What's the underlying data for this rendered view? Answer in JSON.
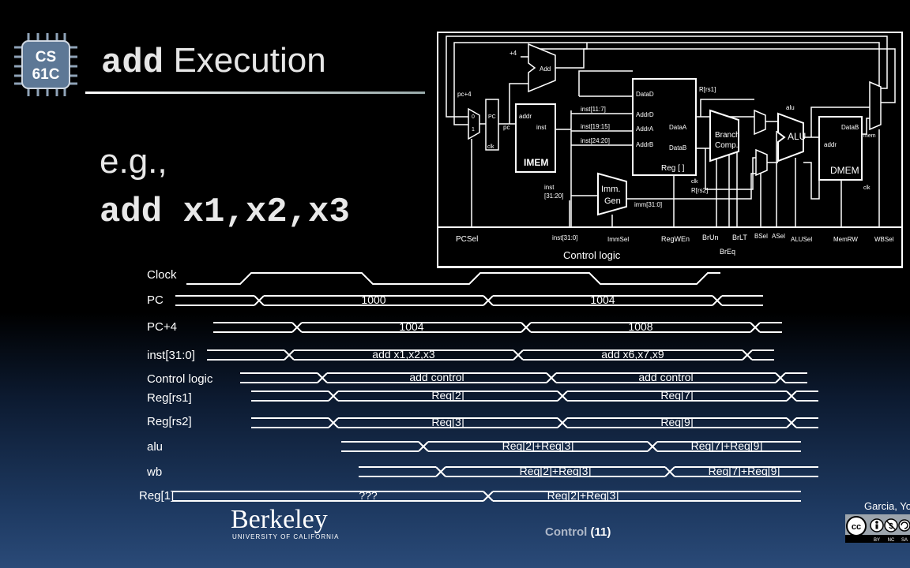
{
  "title": {
    "keyword": "add",
    "rest": " Execution"
  },
  "logo_text": [
    "CS",
    "61C"
  ],
  "example": {
    "eg": "e.g.,",
    "instruction": "add x1,x2,x3"
  },
  "datapath": {
    "plus4": "+4",
    "adder": "Add",
    "pc_plus4": "pc+4",
    "pc_box": "PC",
    "pc_out": "pc",
    "clk": "clk",
    "imem_addr": "addr",
    "imem_inst": "inst",
    "imem": "IMEM",
    "inst_11_7": "inst[11:7]",
    "inst_19_15": "inst[19:15]",
    "inst_24_20": "inst[24:20]",
    "inst_31_20a": "inst",
    "inst_31_20b": "[31:20]",
    "imm_gen_a": "Imm.",
    "imm_gen_b": "Gen",
    "imm_out": "imm[31:0]",
    "dataD": "DataD",
    "addrD": "AddrD",
    "addrA": "AddrA",
    "addrB": "AddrB",
    "dataA": "DataA",
    "dataB": "DataB",
    "reg": "Reg [ ]",
    "r_rs1": "R[rs1]",
    "r_rs2": "R[rs2]",
    "branch_a": "Branch",
    "branch_b": "Comp.",
    "alu": "ALU",
    "alu_wire": "alu",
    "dmem_addr": "addr",
    "dmem_datab": "DataB",
    "dmem": "DMEM",
    "mem": "mem",
    "control": "Control logic",
    "ctrl_signals": [
      "PCSel",
      "inst[31:0]",
      "ImmSel",
      "RegWEn",
      "BrUn",
      "BrLT",
      "BSel",
      "ASel",
      "ALUSel",
      "MemRW",
      "WBSel"
    ],
    "breq": "BrEq"
  },
  "timing": {
    "signals": [
      {
        "name": "Clock"
      },
      {
        "name": "PC",
        "values": [
          "1000",
          "1004"
        ]
      },
      {
        "name": "PC+4",
        "values": [
          "1004",
          "1008"
        ]
      },
      {
        "name": "inst[31:0]",
        "values": [
          "add x1,x2,x3",
          "add x6,x7,x9"
        ]
      },
      {
        "name": "Control logic",
        "values": [
          "add control",
          "add control"
        ]
      },
      {
        "name": "Reg[rs1]",
        "values": [
          "Reg[2]",
          "Reg[7]"
        ]
      },
      {
        "name": "Reg[rs2]",
        "values": [
          "Reg[3]",
          "Reg[9]"
        ]
      },
      {
        "name": "alu",
        "values": [
          "Reg[2]+Reg[3]",
          "Reg[7]+Reg[9]"
        ]
      },
      {
        "name": "wb",
        "values": [
          "Reg[2]+Reg[3]",
          "Reg[7]+Reg[9]"
        ]
      },
      {
        "name": "Reg[1]",
        "values": [
          "???",
          "Reg[2]+Reg[3]"
        ]
      }
    ]
  },
  "berkeley": {
    "name": "Berkeley",
    "sub": "UNIVERSITY OF CALIFORNIA"
  },
  "footer": {
    "topic": "Control",
    "slide": "(11)"
  },
  "author": "Garcia, Yo",
  "license": {
    "cc": "cc",
    "tags": [
      "BY",
      "NC",
      "SA"
    ]
  }
}
